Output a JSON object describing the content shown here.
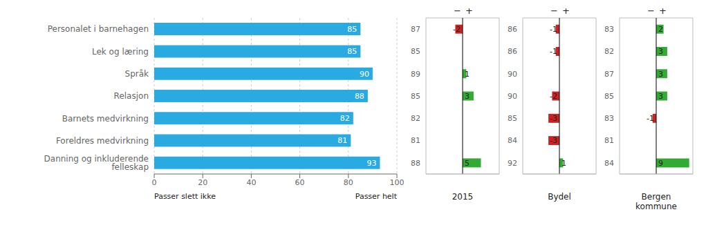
{
  "chart_data": [
    {
      "type": "bar",
      "orientation": "horizontal",
      "categories": [
        "Personalet i barnehagen",
        "Lek og læring",
        "Språk",
        "Relasjon",
        "Barnets medvirkning",
        "Foreldres medvirkning",
        "Danning og inkluderende felleskap"
      ],
      "values": [
        85,
        85,
        90,
        88,
        82,
        81,
        93
      ],
      "color": "#29abe2",
      "data_labels": true,
      "xlim": [
        0,
        100
      ],
      "xticks": [
        0,
        20,
        40,
        60,
        80,
        100
      ],
      "grid": true,
      "annotations": [
        "Passer slett ikke",
        "Passer helt"
      ]
    },
    {
      "type": "bar",
      "orientation": "horizontal",
      "title": "2015",
      "values": [
        -2,
        0,
        1,
        3,
        0,
        0,
        5
      ],
      "reference_values": [
        87,
        85,
        89,
        85,
        82,
        81,
        88
      ],
      "colors": [
        "#cc2222",
        "#33aa33",
        "#33aa33",
        "#33aa33",
        "#33aa33",
        "#33aa33",
        "#33aa33"
      ],
      "xlim": [
        -10,
        10
      ],
      "tick_labels": false,
      "data_labels": true,
      "annotations": [
        "−",
        "+"
      ]
    },
    {
      "type": "bar",
      "orientation": "horizontal",
      "title": "Bydel",
      "values": [
        -1,
        -1,
        0,
        -2,
        -3,
        -3,
        1
      ],
      "reference_values": [
        86,
        86,
        90,
        90,
        85,
        84,
        92
      ],
      "colors": [
        "#cc2222",
        "#cc2222",
        "#33aa33",
        "#cc2222",
        "#cc2222",
        "#cc2222",
        "#33aa33"
      ],
      "xlim": [
        -10,
        10
      ],
      "tick_labels": false,
      "data_labels": true,
      "annotations": [
        "−",
        "+"
      ]
    },
    {
      "type": "bar",
      "orientation": "horizontal",
      "title": "Bergen kommune",
      "values": [
        2,
        3,
        3,
        3,
        -1,
        0,
        9
      ],
      "reference_values": [
        83,
        82,
        87,
        85,
        83,
        81,
        84
      ],
      "colors": [
        "#33aa33",
        "#33aa33",
        "#33aa33",
        "#33aa33",
        "#cc2222",
        "#33aa33",
        "#33aa33"
      ],
      "xlim": [
        -10,
        10
      ],
      "tick_labels": false,
      "data_labels": true,
      "annotations": [
        "−",
        "+"
      ]
    }
  ]
}
